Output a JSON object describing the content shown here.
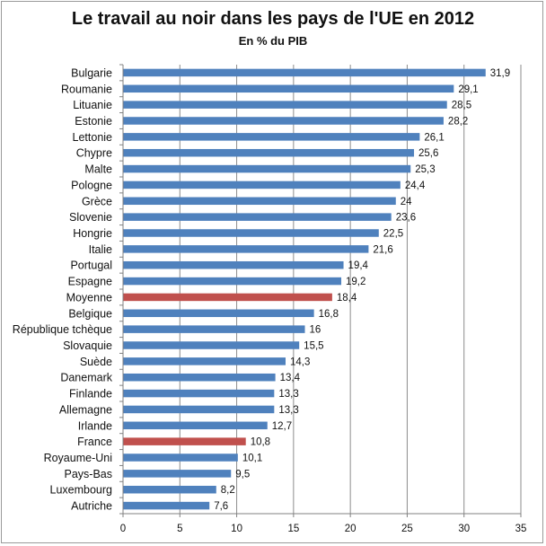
{
  "chart_data": {
    "type": "bar",
    "orientation": "horizontal",
    "title": "Le travail au noir dans les pays de l'UE en 2012",
    "subtitle": "En % du PIB",
    "categories": [
      "Bulgarie",
      "Roumanie",
      "Lituanie",
      "Estonie",
      "Lettonie",
      "Chypre",
      "Malte",
      "Pologne",
      "Grèce",
      "Slovenie",
      "Hongrie",
      "Italie",
      "Portugal",
      "Espagne",
      "Moyenne",
      "Belgique",
      "République tchèque",
      "Slovaquie",
      "Suède",
      "Danemark",
      "Finlande",
      "Allemagne",
      "Irlande",
      "France",
      "Royaume-Uni",
      "Pays-Bas",
      "Luxembourg",
      "Autriche"
    ],
    "values": [
      31.9,
      29.1,
      28.5,
      28.2,
      26.1,
      25.6,
      25.3,
      24.4,
      24,
      23.6,
      22.5,
      21.6,
      19.4,
      19.2,
      18.4,
      16.8,
      16,
      15.5,
      14.3,
      13.4,
      13.3,
      13.3,
      12.7,
      10.8,
      10.1,
      9.5,
      8.2,
      7.6
    ],
    "value_labels": [
      "31,9",
      "29,1",
      "28,5",
      "28,2",
      "26,1",
      "25,6",
      "25,3",
      "24,4",
      "24",
      "23,6",
      "22,5",
      "21,6",
      "19,4",
      "19,2",
      "18,4",
      "16,8",
      "16",
      "15,5",
      "14,3",
      "13,4",
      "13,3",
      "13,3",
      "12,7",
      "10,8",
      "10,1",
      "9,5",
      "8,2",
      "7,6"
    ],
    "highlighted": [
      "Moyenne",
      "France"
    ],
    "xlim": [
      0,
      35
    ],
    "xticks": [
      0,
      5,
      10,
      15,
      20,
      25,
      30,
      35
    ],
    "grid": true,
    "xlabel": "",
    "ylabel": "",
    "colors": {
      "bar": "#4f81bd",
      "highlight": "#c0504d",
      "grid": "#8c8c8c",
      "axis": "#808080"
    }
  }
}
